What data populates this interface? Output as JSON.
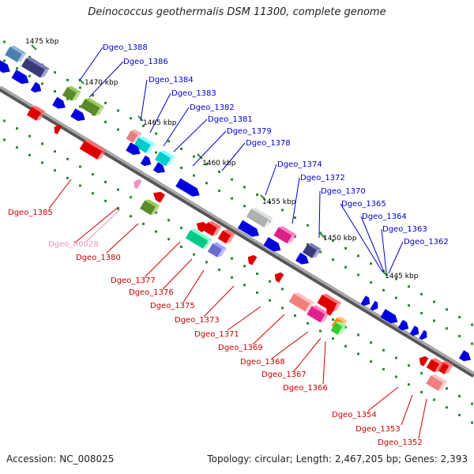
{
  "header": {
    "title": "Deinococcus geothermalis DSM 11300, complete genome"
  },
  "footer": {
    "accession": "Accession: NC_008025",
    "summary": "Topology: circular; Length: 2,467,205 bp; Genes: 2,393"
  },
  "colors": {
    "forward_label": "#0000cc",
    "reverse_label": "#cc0000",
    "rna_label": "#f090c0",
    "backbone": "#888888",
    "tick_forward": "#2a8a2a",
    "tick_reverse": "#2a8a2a"
  },
  "ticks": [
    {
      "label": "1475 kbp"
    },
    {
      "label": "1470 kbp"
    },
    {
      "label": "1465 kbp"
    },
    {
      "label": "1460 kbp"
    },
    {
      "label": "1455 kbp"
    },
    {
      "label": "1450 kbp"
    },
    {
      "label": "1445 kbp"
    }
  ],
  "forward_labels": [
    {
      "text": "Dgeo_1388"
    },
    {
      "text": "Dgeo_1386"
    },
    {
      "text": "Dgeo_1384"
    },
    {
      "text": "Dgeo_1383"
    },
    {
      "text": "Dgeo_1382"
    },
    {
      "text": "Dgeo_1381"
    },
    {
      "text": "Dgeo_1379"
    },
    {
      "text": "Dgeo_1378"
    },
    {
      "text": "Dgeo_1374"
    },
    {
      "text": "Dgeo_1372"
    },
    {
      "text": "Dgeo_1370"
    },
    {
      "text": "Dgeo_1365"
    },
    {
      "text": "Dgeo_1364"
    },
    {
      "text": "Dgeo_1363"
    },
    {
      "text": "Dgeo_1362"
    }
  ],
  "reverse_labels": [
    {
      "text": "Dgeo_1385"
    },
    {
      "text": "Dgeo_R0028"
    },
    {
      "text": "Dgeo_1380"
    },
    {
      "text": "Dgeo_1377"
    },
    {
      "text": "Dgeo_1376"
    },
    {
      "text": "Dgeo_1375"
    },
    {
      "text": "Dgeo_1373"
    },
    {
      "text": "Dgeo_1371"
    },
    {
      "text": "Dgeo_1369"
    },
    {
      "text": "Dgeo_1368"
    },
    {
      "text": "Dgeo_1367"
    },
    {
      "text": "Dgeo_1366"
    },
    {
      "text": "Dgeo_1354"
    },
    {
      "text": "Dgeo_1353"
    },
    {
      "text": "Dgeo_1352"
    }
  ]
}
